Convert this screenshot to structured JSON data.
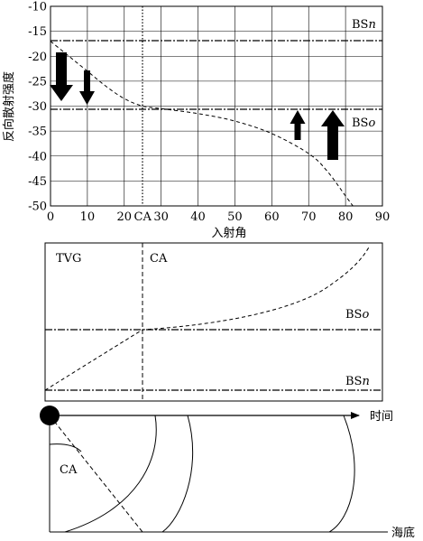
{
  "top_chart": {
    "ylabel": "反向散射强度",
    "xlabel": "入射角",
    "y_ticks": [
      "-10",
      "-15",
      "-20",
      "-25",
      "-30",
      "-35",
      "-40",
      "-45",
      "-50"
    ],
    "x_ticks": [
      "0",
      "10",
      "20",
      "30",
      "40",
      "50",
      "60",
      "70",
      "80",
      "90"
    ],
    "ca_label": "CA",
    "bsn_label": "BS",
    "bsn_sub": "n",
    "bso_label": "BS",
    "bso_sub": "o",
    "bsn_level": -17,
    "bso_level": -30,
    "ca_angle": 25
  },
  "middle_panel": {
    "tvg_label": "TVG",
    "ca_label": "CA",
    "bso_label": "BS",
    "bso_sub": "o",
    "bsn_label": "BS",
    "bsn_sub": "n"
  },
  "bottom_panel": {
    "time_label": "时间",
    "ca_label": "CA",
    "seafloor_label": "海底"
  },
  "chart_data": {
    "type": "line",
    "xlabel": "入射角",
    "ylabel": "反向散射强度",
    "xlim": [
      0,
      90
    ],
    "ylim": [
      -50,
      -10
    ],
    "grid": true,
    "series": [
      {
        "name": "",
        "style": "dashed",
        "x": [
          0,
          5,
          10,
          15,
          20,
          25,
          30,
          40,
          50,
          60,
          70,
          75,
          80,
          82
        ],
        "y": [
          -17,
          -20,
          -23,
          -26,
          -28.5,
          -30,
          -30.5,
          -31.5,
          -33,
          -35.5,
          -39.5,
          -43,
          -48,
          -50
        ]
      }
    ],
    "hlines": [
      {
        "label": "BSn",
        "y": -17
      },
      {
        "label": "BSo",
        "y": -30
      }
    ],
    "vlines": [
      {
        "label": "CA",
        "x": 25
      }
    ]
  }
}
